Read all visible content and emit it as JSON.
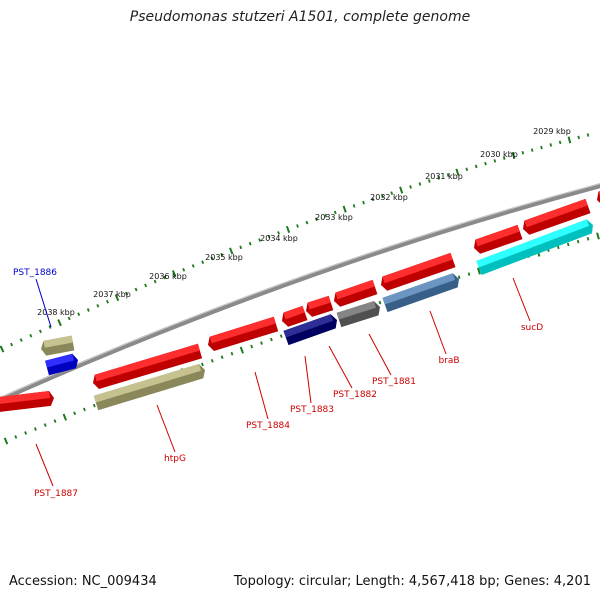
{
  "title": "Pseudomonas stutzeri A1501, complete genome",
  "footer": {
    "accession": "Accession: NC_009434",
    "summary": "Topology: circular; Length: 4,567,418 bp; Genes: 4,201"
  },
  "colors": {
    "backbone": "#8a8a8a",
    "tick": "#1e7a1e",
    "gene_red": "#ff0000",
    "gene_khaki": "#b8b478",
    "gene_blue": "#0000ff",
    "gene_navy": "#000080",
    "gene_grey": "#6a6a6a",
    "gene_steel": "#4a7fb5",
    "gene_cyan": "#00ffff",
    "label_red": "#cc0000",
    "label_blue": "#0000cc"
  },
  "kbp_labels": [
    "2029 kbp",
    "2030 kbp",
    "2031 kbp",
    "2032 kbp",
    "2033 kbp",
    "2034 kbp",
    "2035 kbp",
    "2036 kbp",
    "2037 kbp",
    "2038 kbp"
  ],
  "gene_labels": [
    {
      "id": "PST_1886",
      "color": "blue"
    },
    {
      "id": "PST_1887",
      "color": "red"
    },
    {
      "id": "htpG",
      "color": "red"
    },
    {
      "id": "PST_1884",
      "color": "red"
    },
    {
      "id": "PST_1883",
      "color": "red"
    },
    {
      "id": "PST_1882",
      "color": "red"
    },
    {
      "id": "PST_1881",
      "color": "red"
    },
    {
      "id": "braB",
      "color": "red"
    },
    {
      "id": "sucD",
      "color": "red"
    }
  ]
}
